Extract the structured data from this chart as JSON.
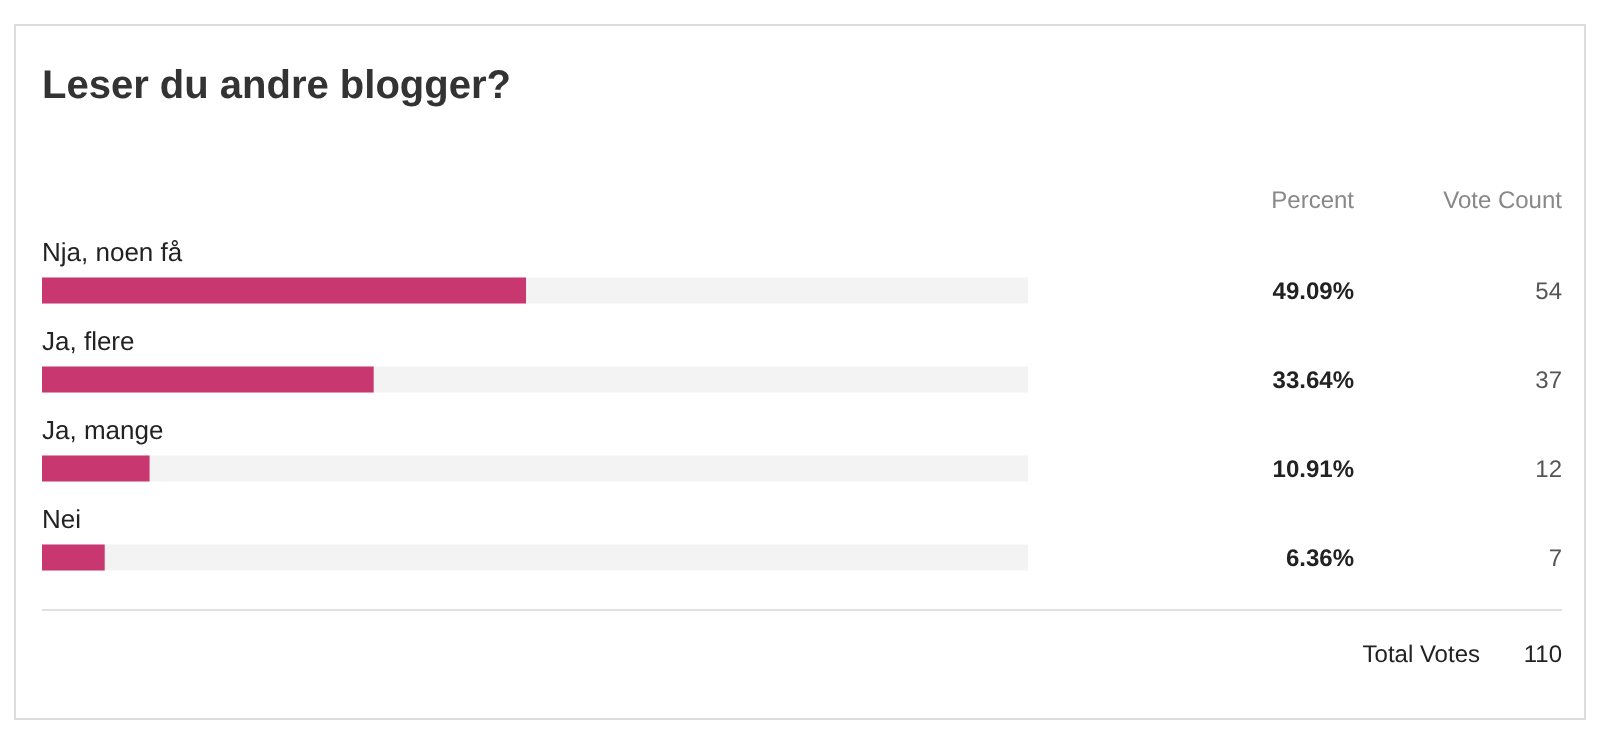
{
  "chart_data": {
    "type": "bar",
    "orientation": "horizontal",
    "title": "Leser du andre blogger?",
    "categories": [
      "Nja, noen få",
      "Ja, flere",
      "Ja, mange",
      "Nei"
    ],
    "values": [
      49.09,
      33.64,
      10.91,
      6.36
    ],
    "value_labels": [
      "49.09%",
      "33.64%",
      "10.91%",
      "6.36%"
    ],
    "color": "#c8376f",
    "xlim": [
      0,
      100
    ],
    "annotations": [
      "Percent",
      "Vote Count",
      "54",
      "37",
      "12",
      "7",
      "Total Votes",
      "110"
    ]
  }
}
